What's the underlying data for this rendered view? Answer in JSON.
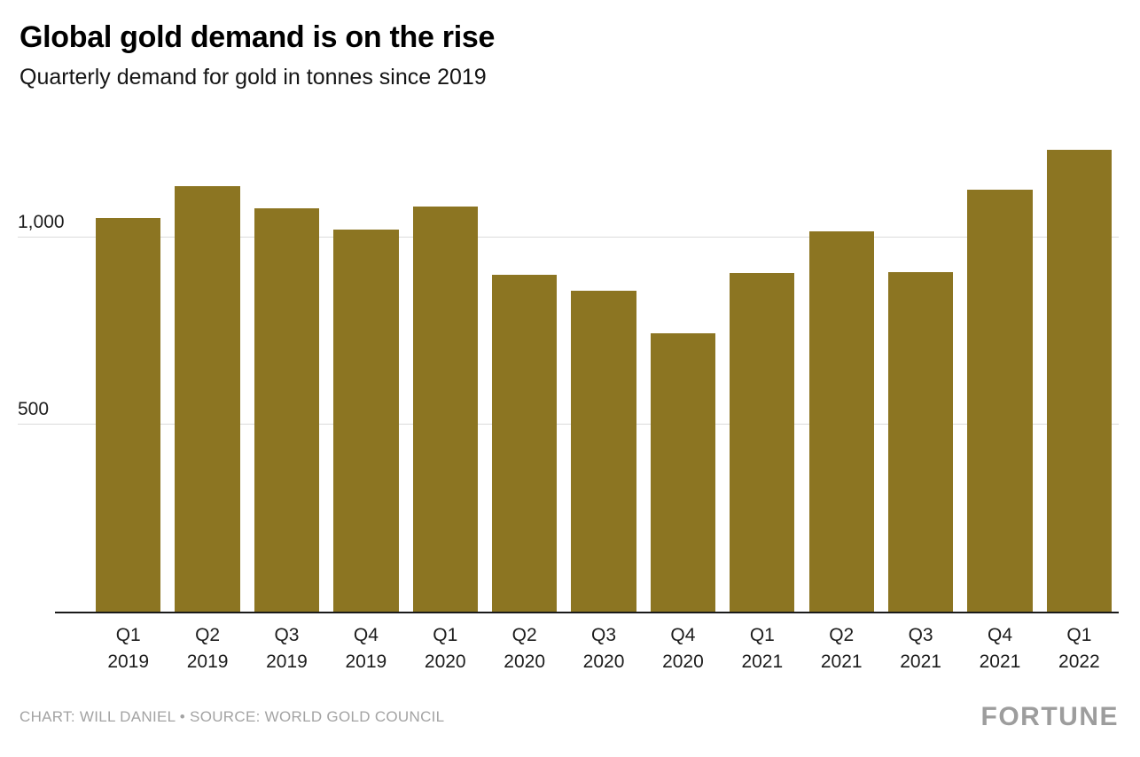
{
  "header": {
    "title": "Global gold demand is on the rise",
    "subtitle": "Quarterly demand for gold in tonnes since 2019"
  },
  "chart_data": {
    "type": "bar",
    "title": "Global gold demand is on the rise",
    "subtitle": "Quarterly demand for gold in tonnes since 2019",
    "categories": [
      "Q1 2019",
      "Q2 2019",
      "Q3 2019",
      "Q4 2019",
      "Q1 2020",
      "Q2 2020",
      "Q3 2020",
      "Q4 2020",
      "Q1 2021",
      "Q2 2021",
      "Q3 2021",
      "Q4 2021",
      "Q1 2022"
    ],
    "values": [
      1053,
      1137,
      1079,
      1021,
      1084,
      900,
      859,
      744,
      906,
      1016,
      908,
      1129,
      1234
    ],
    "xlabel": "",
    "ylabel": "",
    "ylim": [
      0,
      1327
    ],
    "yticks": [
      {
        "value": 500,
        "label": "500"
      },
      {
        "value": 1000,
        "label": "1,000"
      }
    ],
    "grid": "horizontal",
    "legend": "none",
    "bar_color": "#8c7522",
    "gridline_color": "#dbdbdb"
  },
  "footer": {
    "credit": "CHART: WILL DANIEL • SOURCE: WORLD GOLD COUNCIL",
    "brand": "FORTUNE"
  }
}
